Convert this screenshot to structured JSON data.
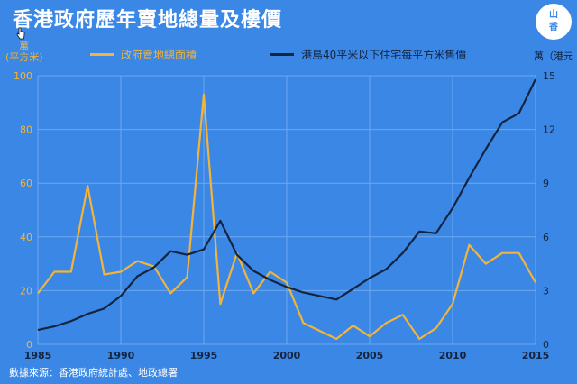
{
  "header": {
    "title": "香港政府歷年賣地總量及樓價",
    "logo_text": "山\n香"
  },
  "units": {
    "left": "萬\n(平方米)",
    "right": "萬（港元"
  },
  "source": "數據來源：香港政府統計處、地政總署",
  "colors": {
    "background": "#3a87e6",
    "land_series": "#f2b43a",
    "price_series": "#14243f"
  },
  "chart_data": {
    "type": "line",
    "title": "香港政府歷年賣地總量及樓價",
    "x": [
      1985,
      1986,
      1987,
      1988,
      1989,
      1990,
      1991,
      1992,
      1993,
      1994,
      1995,
      1996,
      1997,
      1998,
      1999,
      2000,
      2001,
      2002,
      2003,
      2004,
      2005,
      2006,
      2007,
      2008,
      2009,
      2010,
      2011,
      2012,
      2013,
      2014,
      2015
    ],
    "x_ticks": [
      1985,
      1990,
      1995,
      2000,
      2005,
      2010,
      2015
    ],
    "xlim": [
      1985,
      2015
    ],
    "y_left_ticks": [
      0,
      20,
      40,
      60,
      80,
      100
    ],
    "y_left_lim": [
      0,
      100
    ],
    "y_right_ticks": [
      0,
      3,
      6,
      9,
      12,
      15
    ],
    "y_right_lim": [
      0,
      15
    ],
    "grid": true,
    "legend_position": "top",
    "series": [
      {
        "name": "政府賣地總面積",
        "axis": "left",
        "values": [
          19,
          27,
          27,
          59,
          26,
          27,
          31,
          29,
          19,
          25,
          93,
          15,
          34,
          19,
          27,
          23,
          8,
          5,
          2,
          7,
          3,
          8,
          11,
          2,
          6,
          15,
          37,
          30,
          34,
          34,
          23
        ]
      },
      {
        "name": "港島40平米以下住宅每平方米售價",
        "axis": "right",
        "values": [
          0.8,
          1.0,
          1.3,
          1.7,
          2.0,
          2.7,
          3.8,
          4.3,
          5.2,
          5.0,
          5.3,
          6.9,
          5.0,
          4.1,
          3.6,
          3.2,
          2.9,
          2.7,
          2.5,
          3.1,
          3.7,
          4.2,
          5.1,
          6.3,
          6.2,
          7.6,
          9.3,
          10.9,
          12.4,
          12.9,
          14.8
        ]
      }
    ]
  }
}
